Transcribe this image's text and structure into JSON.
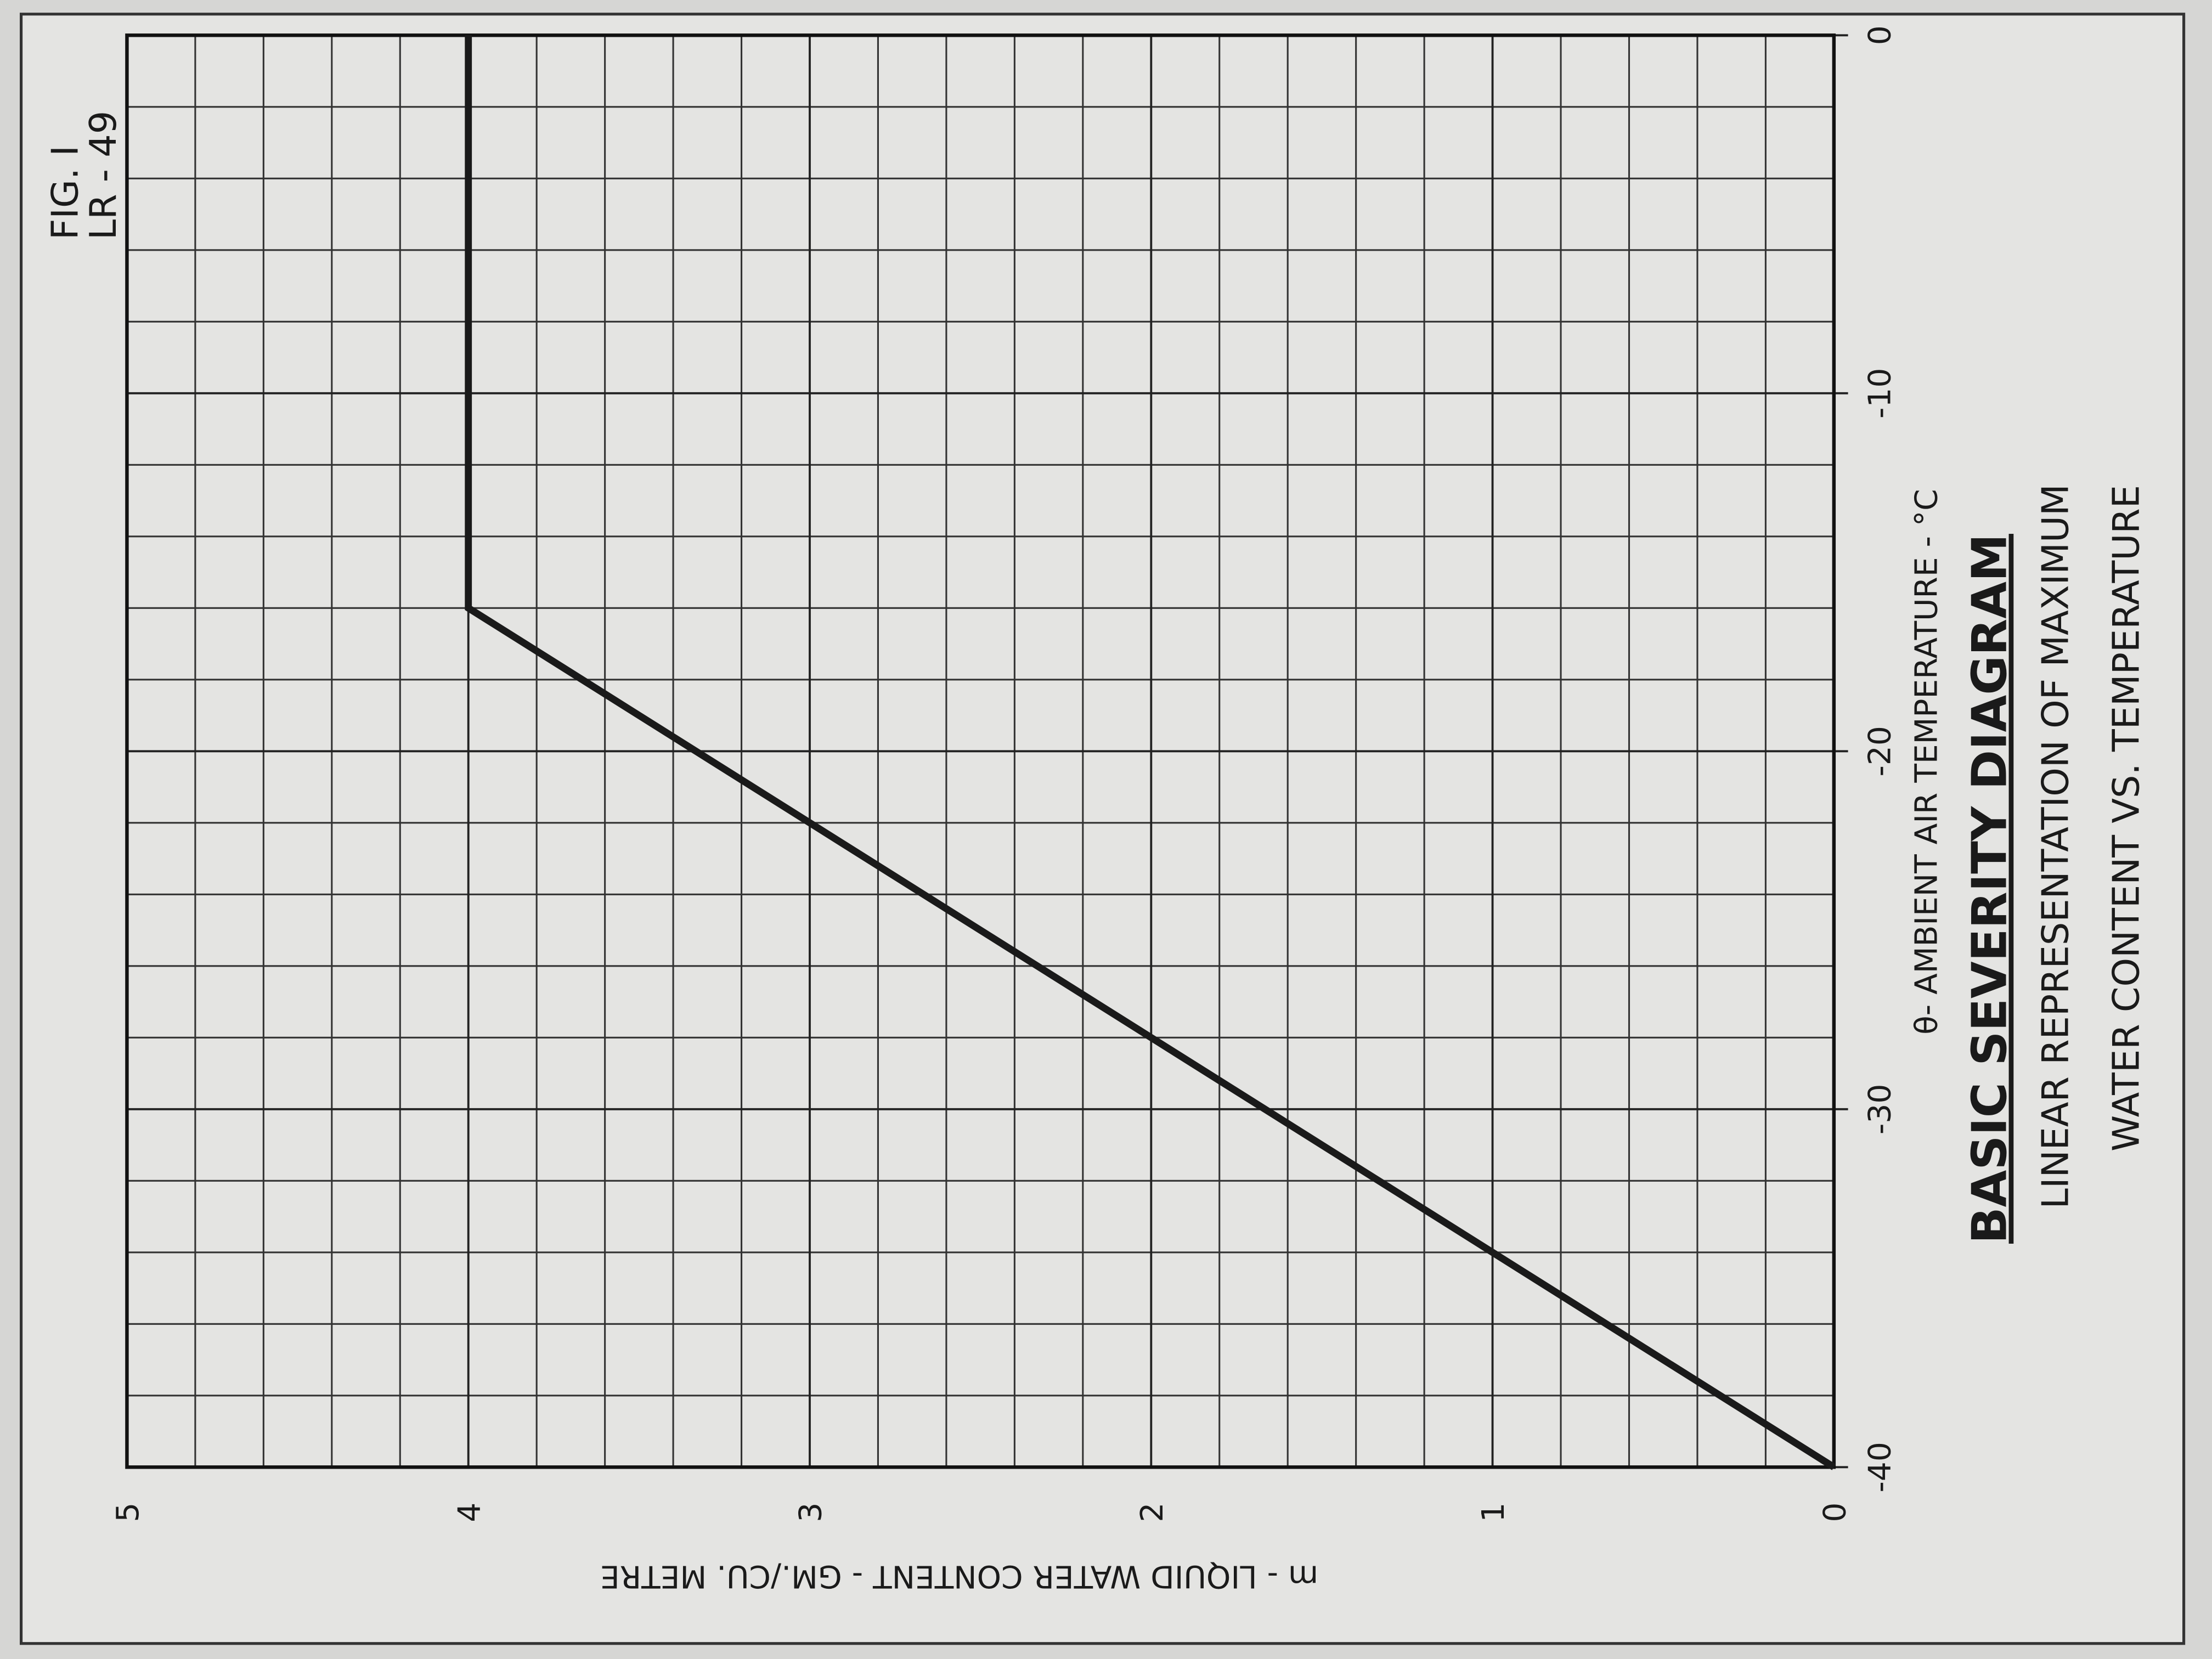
{
  "chart_data": {
    "type": "line",
    "figure_label": [
      "FIG. I",
      "LR - 49"
    ],
    "title": "BASIC SEVERITY DIAGRAM",
    "subtitle": [
      "LINEAR REPRESENTATION OF MAXIMUM",
      "WATER CONTENT VS. TEMPERATURE"
    ],
    "x_label": "θ- AMBIENT  AIR  TEMPERATURE - °C",
    "y_label": "m - LIQUID  WATER  CONTENT - GM./CU. METRE",
    "x": [
      -40,
      -16,
      0
    ],
    "values": [
      0,
      4,
      4
    ],
    "color": "#1a1a1a",
    "xlim": [
      -40,
      0
    ],
    "xticks": [
      -40,
      -30,
      -20,
      -10,
      0
    ],
    "ylim": [
      0,
      5
    ],
    "yticks": [
      0,
      1,
      2,
      3,
      4,
      5
    ],
    "grid": true
  }
}
